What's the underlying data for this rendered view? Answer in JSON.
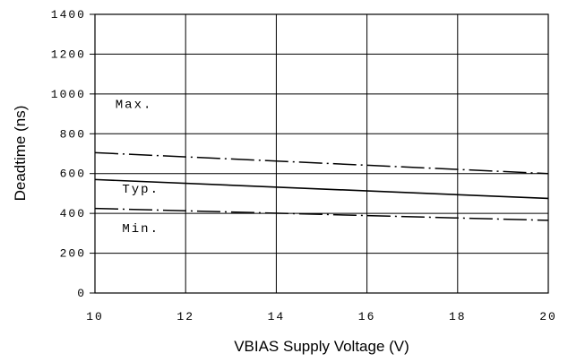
{
  "chart_data": {
    "type": "line",
    "xlabel": "VBIAS Supply Voltage (V)",
    "ylabel": "Deadtime (ns)",
    "xlim": [
      10,
      20
    ],
    "ylim": [
      0,
      1400
    ],
    "x_ticks": [
      "10",
      "12",
      "14",
      "16",
      "18",
      "20"
    ],
    "y_ticks": [
      "0",
      "200",
      "400",
      "600",
      "800",
      "1000",
      "1200",
      "1400"
    ],
    "x_tick_values": [
      10,
      12,
      14,
      16,
      18,
      20
    ],
    "y_tick_values": [
      0,
      200,
      400,
      600,
      800,
      1000,
      1200,
      1400
    ],
    "grid": true,
    "series": [
      {
        "key": "max",
        "x": [
          10,
          20
        ],
        "values": [
          705,
          600
        ],
        "style": "dash-dot"
      },
      {
        "key": "typ",
        "x": [
          10,
          20
        ],
        "values": [
          570,
          475
        ],
        "style": "solid"
      },
      {
        "key": "min",
        "x": [
          10,
          20
        ],
        "values": [
          425,
          365
        ],
        "style": "dash-dot"
      }
    ],
    "annotations": [
      {
        "key": "max",
        "text": "Max.",
        "x": 10.45,
        "y": 930
      },
      {
        "key": "typ",
        "text": "Typ.",
        "x": 10.6,
        "y": 505
      },
      {
        "key": "min",
        "text": "Min.",
        "x": 10.6,
        "y": 305
      }
    ]
  }
}
